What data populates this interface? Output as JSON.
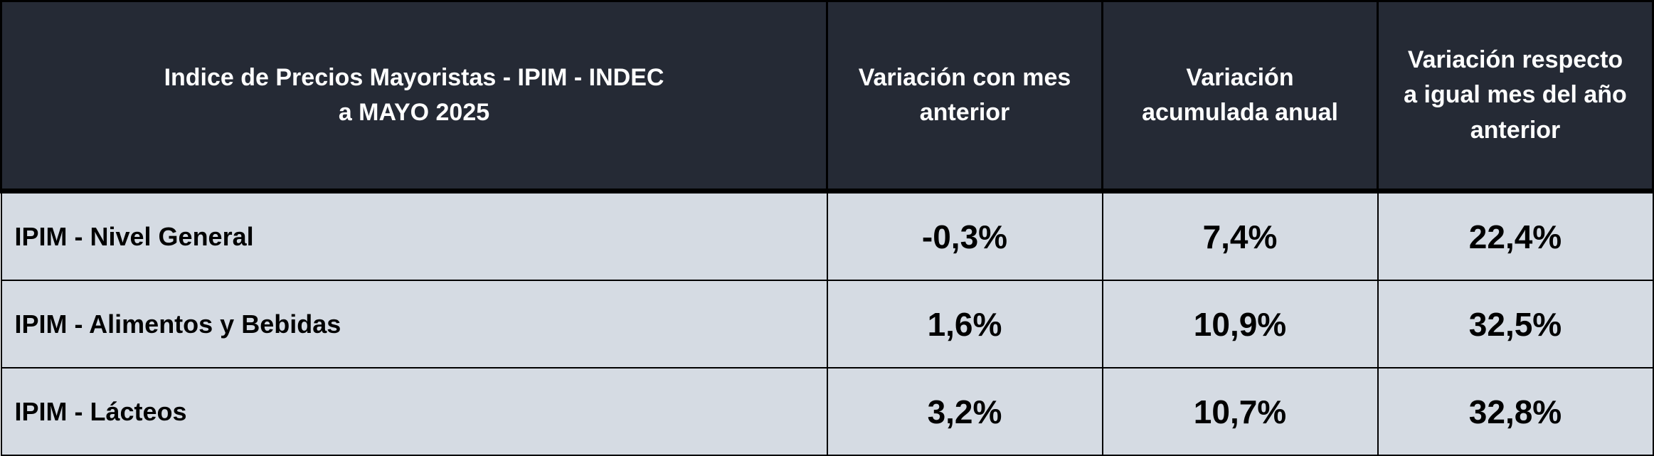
{
  "table": {
    "header": [
      [
        "Indice de Precios Mayoristas - IPIM - INDEC",
        "a MAYO 2025"
      ],
      [
        "Variación con mes",
        "anterior"
      ],
      [
        "Variación",
        "acumulada anual"
      ],
      [
        "Variación respecto",
        "a igual mes del año",
        "anterior"
      ]
    ],
    "rows": [
      [
        "IPIM - Nivel General",
        "-0,3%",
        "7,4%",
        "22,4%"
      ],
      [
        "IPIM - Alimentos y Bebidas",
        "1,6%",
        "10,9%",
        "32,5%"
      ],
      [
        "IPIM - Lácteos",
        "3,2%",
        "10,7%",
        "32,8%"
      ]
    ]
  }
}
